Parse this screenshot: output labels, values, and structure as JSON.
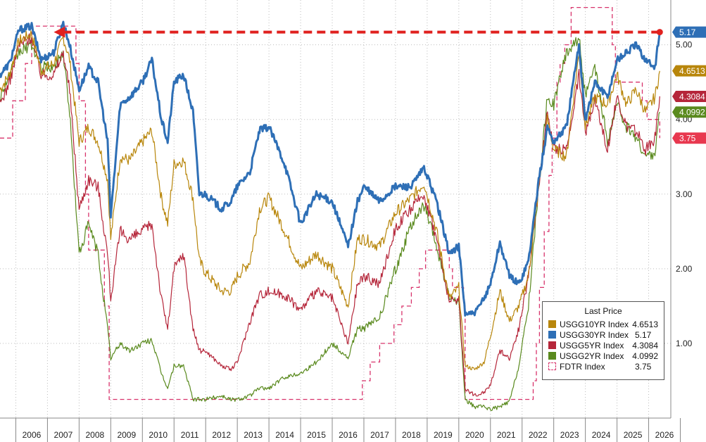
{
  "chart_data": {
    "type": "line",
    "title": "",
    "xlabel": "",
    "ylabel": "",
    "x_tick_labels": [
      "2006",
      "2007",
      "2008",
      "2009",
      "2010",
      "2011",
      "2012",
      "2013",
      "2014",
      "2015",
      "2016",
      "2017",
      "2018",
      "2019",
      "2020",
      "2021",
      "2022",
      "2023",
      "2024",
      "2025",
      "2026"
    ],
    "y_ticks": [
      "5.00",
      "4.00",
      "3.00",
      "2.00",
      "1.00"
    ],
    "ylim": [
      0,
      5.6
    ],
    "xlim": [
      2005.5,
      2026.7
    ],
    "grid": true,
    "legend_title": "Last Price",
    "legend_position": "bottom-right",
    "annotation": "dashed red arrow from the 2026 30Y level back to the 2007 peak",
    "series": [
      {
        "name": "USGG10YR Index",
        "last": "4.6513",
        "color": "#b8860b",
        "x": [
          2005.5,
          2005.8,
          2006.1,
          2006.5,
          2006.8,
          2007.2,
          2007.5,
          2007.7,
          2008.0,
          2008.3,
          2008.6,
          2008.9,
          2009.0,
          2009.3,
          2009.6,
          2010.0,
          2010.3,
          2010.6,
          2010.8,
          2011.0,
          2011.3,
          2011.6,
          2011.8,
          2012.0,
          2012.5,
          2012.8,
          2013.0,
          2013.4,
          2013.7,
          2014.0,
          2014.5,
          2015.0,
          2015.5,
          2016.0,
          2016.5,
          2016.8,
          2017.0,
          2017.5,
          2018.0,
          2018.5,
          2018.9,
          2019.3,
          2019.7,
          2020.0,
          2020.2,
          2020.5,
          2020.8,
          2021.0,
          2021.3,
          2021.6,
          2021.9,
          2022.2,
          2022.5,
          2022.8,
          2023.0,
          2023.4,
          2023.8,
          2024.0,
          2024.3,
          2024.7,
          2025.0,
          2025.3,
          2025.6,
          2025.9,
          2026.2,
          2026.35
        ],
        "values": [
          4.4,
          4.6,
          5.05,
          5.15,
          4.65,
          4.75,
          5.1,
          4.8,
          3.7,
          3.9,
          3.7,
          3.2,
          2.4,
          3.5,
          3.45,
          3.7,
          3.85,
          2.95,
          2.6,
          3.4,
          3.45,
          2.95,
          2.1,
          1.95,
          1.7,
          1.7,
          1.9,
          2.1,
          2.8,
          2.95,
          2.5,
          2.0,
          2.2,
          2.0,
          1.5,
          2.4,
          2.4,
          2.3,
          2.75,
          2.95,
          3.15,
          2.5,
          1.6,
          1.75,
          0.7,
          0.65,
          0.75,
          1.1,
          1.7,
          1.3,
          1.5,
          1.9,
          3.0,
          4.0,
          3.6,
          3.5,
          4.9,
          3.9,
          4.3,
          4.2,
          4.6,
          4.2,
          4.4,
          4.1,
          4.3,
          4.65
        ]
      },
      {
        "name": "USGG30YR Index",
        "last": "5.17",
        "color": "#2e6fb6",
        "x": [
          2005.5,
          2005.8,
          2006.1,
          2006.5,
          2006.8,
          2007.2,
          2007.5,
          2007.7,
          2008.0,
          2008.3,
          2008.6,
          2008.9,
          2009.0,
          2009.3,
          2009.6,
          2010.0,
          2010.3,
          2010.6,
          2010.8,
          2011.0,
          2011.3,
          2011.6,
          2011.8,
          2012.0,
          2012.5,
          2012.8,
          2013.0,
          2013.4,
          2013.7,
          2014.0,
          2014.5,
          2015.0,
          2015.5,
          2016.0,
          2016.5,
          2016.8,
          2017.0,
          2017.5,
          2018.0,
          2018.5,
          2018.9,
          2019.3,
          2019.7,
          2020.0,
          2020.2,
          2020.5,
          2020.8,
          2021.0,
          2021.3,
          2021.6,
          2021.9,
          2022.2,
          2022.5,
          2022.8,
          2023.0,
          2023.4,
          2023.8,
          2024.0,
          2024.3,
          2024.7,
          2025.0,
          2025.3,
          2025.6,
          2025.9,
          2026.2,
          2026.35
        ],
        "values": [
          4.6,
          4.75,
          5.2,
          5.25,
          4.8,
          4.9,
          5.3,
          5.0,
          4.4,
          4.7,
          4.5,
          3.7,
          2.7,
          4.2,
          4.3,
          4.5,
          4.8,
          4.0,
          3.7,
          4.5,
          4.6,
          4.1,
          3.0,
          3.0,
          2.8,
          2.9,
          3.1,
          3.3,
          3.85,
          3.9,
          3.4,
          2.6,
          3.0,
          2.9,
          2.3,
          2.9,
          3.1,
          2.9,
          3.1,
          3.1,
          3.35,
          2.9,
          2.2,
          2.3,
          1.4,
          1.4,
          1.6,
          1.8,
          2.35,
          1.9,
          1.8,
          2.1,
          3.1,
          3.9,
          3.7,
          3.9,
          5.0,
          4.0,
          4.5,
          4.3,
          4.8,
          4.9,
          5.0,
          4.8,
          4.7,
          5.17
        ]
      },
      {
        "name": "USGG5YR Index",
        "last": "4.3084",
        "color": "#b5263a",
        "x": [
          2005.5,
          2005.8,
          2006.1,
          2006.5,
          2006.8,
          2007.2,
          2007.5,
          2007.7,
          2008.0,
          2008.3,
          2008.6,
          2008.9,
          2009.0,
          2009.3,
          2009.6,
          2010.0,
          2010.3,
          2010.6,
          2010.8,
          2011.0,
          2011.3,
          2011.6,
          2011.8,
          2012.0,
          2012.5,
          2012.8,
          2013.0,
          2013.4,
          2013.7,
          2014.0,
          2014.5,
          2015.0,
          2015.5,
          2016.0,
          2016.5,
          2016.8,
          2017.0,
          2017.5,
          2018.0,
          2018.5,
          2018.9,
          2019.3,
          2019.7,
          2020.0,
          2020.2,
          2020.5,
          2020.8,
          2021.0,
          2021.3,
          2021.6,
          2021.9,
          2022.2,
          2022.5,
          2022.8,
          2023.0,
          2023.4,
          2023.8,
          2024.0,
          2024.3,
          2024.7,
          2025.0,
          2025.3,
          2025.6,
          2025.9,
          2026.2,
          2026.35
        ],
        "values": [
          4.2,
          4.5,
          5.0,
          5.1,
          4.6,
          4.6,
          4.9,
          4.4,
          2.8,
          3.2,
          3.1,
          2.2,
          1.6,
          2.5,
          2.4,
          2.5,
          2.6,
          1.6,
          1.2,
          2.0,
          2.2,
          1.2,
          0.9,
          0.9,
          0.7,
          0.65,
          0.75,
          1.3,
          1.65,
          1.7,
          1.65,
          1.45,
          1.7,
          1.6,
          1.0,
          1.8,
          1.9,
          1.8,
          2.55,
          2.8,
          3.0,
          2.4,
          1.55,
          1.6,
          0.4,
          0.3,
          0.35,
          0.45,
          0.9,
          0.8,
          1.2,
          1.9,
          3.0,
          4.1,
          3.6,
          3.6,
          4.6,
          3.8,
          4.3,
          3.6,
          4.3,
          3.9,
          3.85,
          3.6,
          3.75,
          4.31
        ]
      },
      {
        "name": "USGG2YR Index",
        "last": "4.0992",
        "color": "#5a8a1e",
        "x": [
          2005.5,
          2005.8,
          2006.1,
          2006.5,
          2006.8,
          2007.2,
          2007.5,
          2007.7,
          2008.0,
          2008.3,
          2008.6,
          2008.9,
          2009.0,
          2009.3,
          2009.6,
          2010.0,
          2010.3,
          2010.6,
          2010.8,
          2011.0,
          2011.3,
          2011.6,
          2011.8,
          2012.0,
          2012.5,
          2012.8,
          2013.0,
          2013.4,
          2013.7,
          2014.0,
          2014.5,
          2015.0,
          2015.5,
          2016.0,
          2016.5,
          2016.8,
          2017.0,
          2017.5,
          2018.0,
          2018.5,
          2018.9,
          2019.3,
          2019.7,
          2020.0,
          2020.2,
          2020.5,
          2020.8,
          2021.0,
          2021.3,
          2021.6,
          2021.9,
          2022.2,
          2022.5,
          2022.8,
          2023.0,
          2023.4,
          2023.8,
          2024.0,
          2024.3,
          2024.7,
          2025.0,
          2025.3,
          2025.6,
          2025.9,
          2026.2,
          2026.35
        ],
        "values": [
          4.3,
          4.6,
          4.9,
          5.0,
          4.7,
          4.7,
          4.9,
          4.1,
          2.2,
          2.6,
          2.2,
          1.2,
          0.8,
          1.0,
          0.9,
          1.0,
          1.05,
          0.6,
          0.4,
          0.7,
          0.7,
          0.25,
          0.25,
          0.25,
          0.3,
          0.25,
          0.25,
          0.3,
          0.4,
          0.4,
          0.55,
          0.6,
          0.75,
          1.0,
          0.8,
          1.2,
          1.2,
          1.35,
          2.0,
          2.6,
          2.85,
          2.3,
          1.6,
          1.55,
          0.25,
          0.15,
          0.15,
          0.12,
          0.15,
          0.22,
          0.7,
          1.5,
          3.0,
          4.3,
          4.2,
          4.9,
          5.1,
          4.3,
          4.7,
          3.7,
          4.2,
          3.9,
          3.75,
          3.5,
          3.55,
          4.1
        ]
      },
      {
        "name": "FDTR Index",
        "last": "3.75",
        "color": "#d8336b",
        "dashed": true,
        "x": [
          2005.5,
          2005.9,
          2006.3,
          2006.5,
          2007.7,
          2007.9,
          2008.0,
          2008.2,
          2008.3,
          2008.8,
          2008.95,
          2015.95,
          2016.95,
          2017.2,
          2017.5,
          2017.95,
          2018.2,
          2018.5,
          2018.75,
          2018.95,
          2019.55,
          2019.7,
          2019.8,
          2020.15,
          2020.2,
          2022.2,
          2022.35,
          2022.45,
          2022.55,
          2022.7,
          2022.85,
          2022.95,
          2023.1,
          2023.2,
          2023.35,
          2023.55,
          2024.7,
          2024.85,
          2024.95,
          2025.7,
          2025.8,
          2025.95,
          2026.35
        ],
        "values": [
          3.75,
          4.25,
          4.75,
          5.25,
          5.25,
          4.75,
          4.25,
          3.0,
          2.25,
          1.5,
          0.25,
          0.25,
          0.5,
          0.75,
          1.0,
          1.25,
          1.5,
          1.75,
          2.0,
          2.25,
          2.25,
          2.0,
          1.75,
          1.5,
          0.25,
          0.25,
          0.5,
          1.0,
          1.75,
          2.5,
          3.25,
          3.75,
          4.5,
          4.75,
          5.0,
          5.5,
          5.5,
          5.0,
          4.5,
          4.5,
          4.25,
          4.0,
          3.75
        ]
      }
    ],
    "axis_tags": [
      {
        "series": "USGG30YR Index",
        "label": "5.17",
        "bg": "#2e6fb6",
        "fg": "#ffffff"
      },
      {
        "series": "USGG10YR Index",
        "label": "4.6513",
        "bg": "#b8860b",
        "fg": "#ffffff"
      },
      {
        "series": "USGG5YR Index",
        "label": "4.3084",
        "bg": "#b5263a",
        "fg": "#ffffff"
      },
      {
        "series": "USGG2YR Index",
        "label": "4.0992",
        "bg": "#5a8a1e",
        "fg": "#ffffff"
      },
      {
        "series": "FDTR Index",
        "label": "3.75",
        "bg": "#e8384f",
        "fg": "#ffffff"
      }
    ],
    "arrow": {
      "from_x": 2026.35,
      "to_x": 2007.2,
      "y": 5.17,
      "color": "#e0211f"
    }
  }
}
